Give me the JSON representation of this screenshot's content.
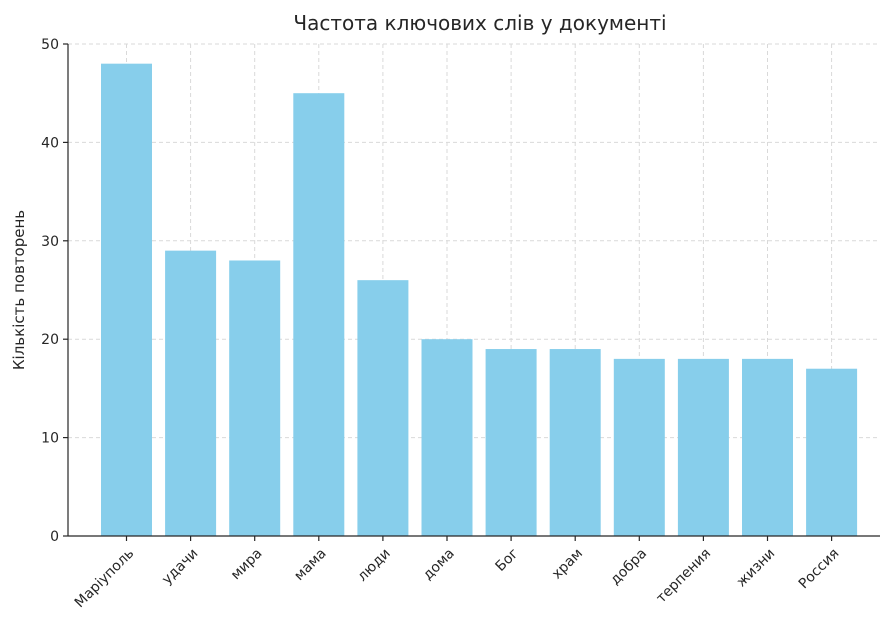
{
  "chart_data": {
    "type": "bar",
    "title": "Частота ключових слів у документі",
    "xlabel": "",
    "ylabel": "Кількість повторень",
    "categories": [
      "Маріуполь",
      "удачи",
      "мира",
      "мама",
      "люди",
      "дома",
      "Бог",
      "храм",
      "добра",
      "терпения",
      "жизни",
      "Россия"
    ],
    "values": [
      48,
      29,
      28,
      45,
      26,
      20,
      19,
      19,
      18,
      18,
      18,
      17
    ],
    "ylim": [
      0,
      50
    ],
    "yticks": [
      0,
      10,
      20,
      30,
      40,
      50
    ],
    "grid": true,
    "bar_color": "#87ceeb"
  }
}
